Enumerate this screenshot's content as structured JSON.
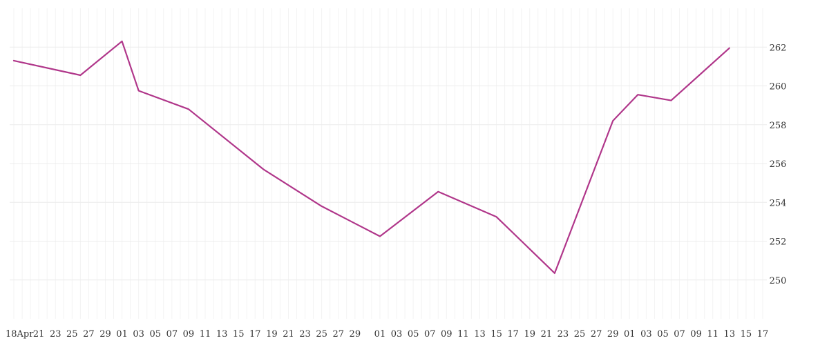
{
  "chart_data": {
    "type": "line",
    "title": "",
    "xlabel": "",
    "ylabel": "",
    "x_start": "2025-04-18",
    "x_end": "2025-07-17",
    "x_tick_labels": [
      "18Apr",
      "21",
      "23",
      "25",
      "27",
      "29",
      "01",
      "03",
      "05",
      "07",
      "09",
      "11",
      "13",
      "15",
      "17",
      "19",
      "21",
      "23",
      "25",
      "27",
      "29",
      "01",
      "03",
      "05",
      "07",
      "09",
      "11",
      "13",
      "15",
      "17",
      "19",
      "21",
      "23",
      "25",
      "27",
      "29",
      "01",
      "03",
      "05",
      "07",
      "09",
      "11",
      "13",
      "15",
      "17"
    ],
    "x_tick_dates": [
      "2025-04-18",
      "2025-04-21",
      "2025-04-23",
      "2025-04-25",
      "2025-04-27",
      "2025-04-29",
      "2025-05-01",
      "2025-05-03",
      "2025-05-05",
      "2025-05-07",
      "2025-05-09",
      "2025-05-11",
      "2025-05-13",
      "2025-05-15",
      "2025-05-17",
      "2025-05-19",
      "2025-05-21",
      "2025-05-23",
      "2025-05-25",
      "2025-05-27",
      "2025-05-29",
      "2025-06-01",
      "2025-06-03",
      "2025-06-05",
      "2025-06-07",
      "2025-06-09",
      "2025-06-11",
      "2025-06-13",
      "2025-06-15",
      "2025-06-17",
      "2025-06-19",
      "2025-06-21",
      "2025-06-23",
      "2025-06-25",
      "2025-06-27",
      "2025-06-29",
      "2025-07-01",
      "2025-07-03",
      "2025-07-05",
      "2025-07-07",
      "2025-07-09",
      "2025-07-11",
      "2025-07-13",
      "2025-07-15",
      "2025-07-17"
    ],
    "y_ticks": [
      250,
      252,
      254,
      256,
      258,
      260,
      262
    ],
    "ylim": [
      248.0,
      264.0
    ],
    "y_axis_position": "right",
    "grid": true,
    "series": [
      {
        "color": "#b0368a",
        "points": [
          {
            "x": "2025-04-18",
            "y": 261.3
          },
          {
            "x": "2025-04-26",
            "y": 260.55
          },
          {
            "x": "2025-05-01",
            "y": 262.3
          },
          {
            "x": "2025-05-03",
            "y": 259.75
          },
          {
            "x": "2025-05-09",
            "y": 258.8
          },
          {
            "x": "2025-05-18",
            "y": 255.7
          },
          {
            "x": "2025-05-25",
            "y": 253.8
          },
          {
            "x": "2025-06-01",
            "y": 252.25
          },
          {
            "x": "2025-06-08",
            "y": 254.55
          },
          {
            "x": "2025-06-15",
            "y": 253.25
          },
          {
            "x": "2025-06-22",
            "y": 250.35
          },
          {
            "x": "2025-06-29",
            "y": 258.2
          },
          {
            "x": "2025-07-02",
            "y": 259.55
          },
          {
            "x": "2025-07-06",
            "y": 259.25
          },
          {
            "x": "2025-07-13",
            "y": 261.95
          }
        ]
      }
    ]
  }
}
